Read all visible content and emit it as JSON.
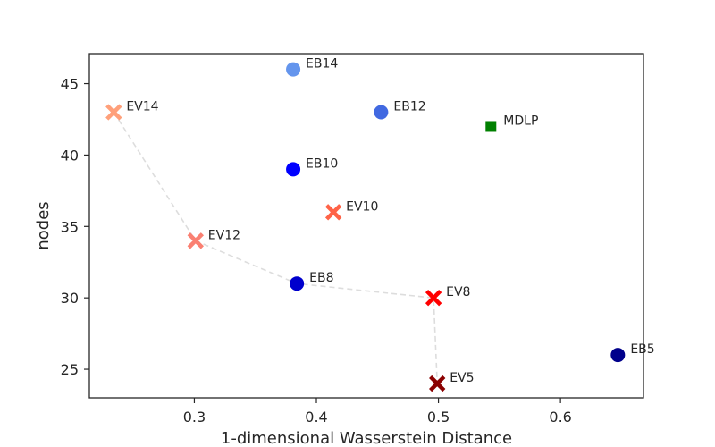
{
  "chart_data": {
    "type": "scatter",
    "title": "",
    "xlabel": "1-dimensional Wasserstein Distance",
    "ylabel": "nodes",
    "xlim": [
      0.214,
      0.668
    ],
    "ylim": [
      23,
      47.1
    ],
    "xticks": [
      0.3,
      0.4,
      0.5,
      0.6
    ],
    "xtick_labels": [
      "0.3",
      "0.4",
      "0.5",
      "0.6"
    ],
    "yticks": [
      25,
      30,
      35,
      40,
      45
    ],
    "ytick_labels": [
      "25",
      "30",
      "35",
      "40",
      "45"
    ],
    "grid": false,
    "legend": "none",
    "points": [
      {
        "label": "EB14",
        "x": 0.381,
        "y": 46,
        "marker": "circle",
        "color": "#6495ED"
      },
      {
        "label": "EB12",
        "x": 0.453,
        "y": 43,
        "marker": "circle",
        "color": "#4169E1"
      },
      {
        "label": "EB10",
        "x": 0.381,
        "y": 39,
        "marker": "circle",
        "color": "#0000FF"
      },
      {
        "label": "EB8",
        "x": 0.384,
        "y": 31,
        "marker": "circle",
        "color": "#0000CD"
      },
      {
        "label": "EB5",
        "x": 0.647,
        "y": 26,
        "marker": "circle",
        "color": "#00008B"
      },
      {
        "label": "EV14",
        "x": 0.234,
        "y": 43,
        "marker": "x",
        "color": "#FFA07A"
      },
      {
        "label": "EV12",
        "x": 0.301,
        "y": 34,
        "marker": "x",
        "color": "#FA8072"
      },
      {
        "label": "EV10",
        "x": 0.414,
        "y": 36,
        "marker": "x",
        "color": "#FF6347"
      },
      {
        "label": "EV8",
        "x": 0.496,
        "y": 30,
        "marker": "x",
        "color": "#FF0000"
      },
      {
        "label": "EV5",
        "x": 0.499,
        "y": 24,
        "marker": "x",
        "color": "#8B0000"
      },
      {
        "label": "MDLP",
        "x": 0.543,
        "y": 42,
        "marker": "square",
        "color": "#008000"
      }
    ],
    "pareto_line": {
      "color": "#dddddd",
      "points": [
        {
          "x": 0.234,
          "y": 43
        },
        {
          "x": 0.301,
          "y": 34
        },
        {
          "x": 0.384,
          "y": 31
        },
        {
          "x": 0.496,
          "y": 30
        },
        {
          "x": 0.499,
          "y": 24
        }
      ]
    }
  }
}
